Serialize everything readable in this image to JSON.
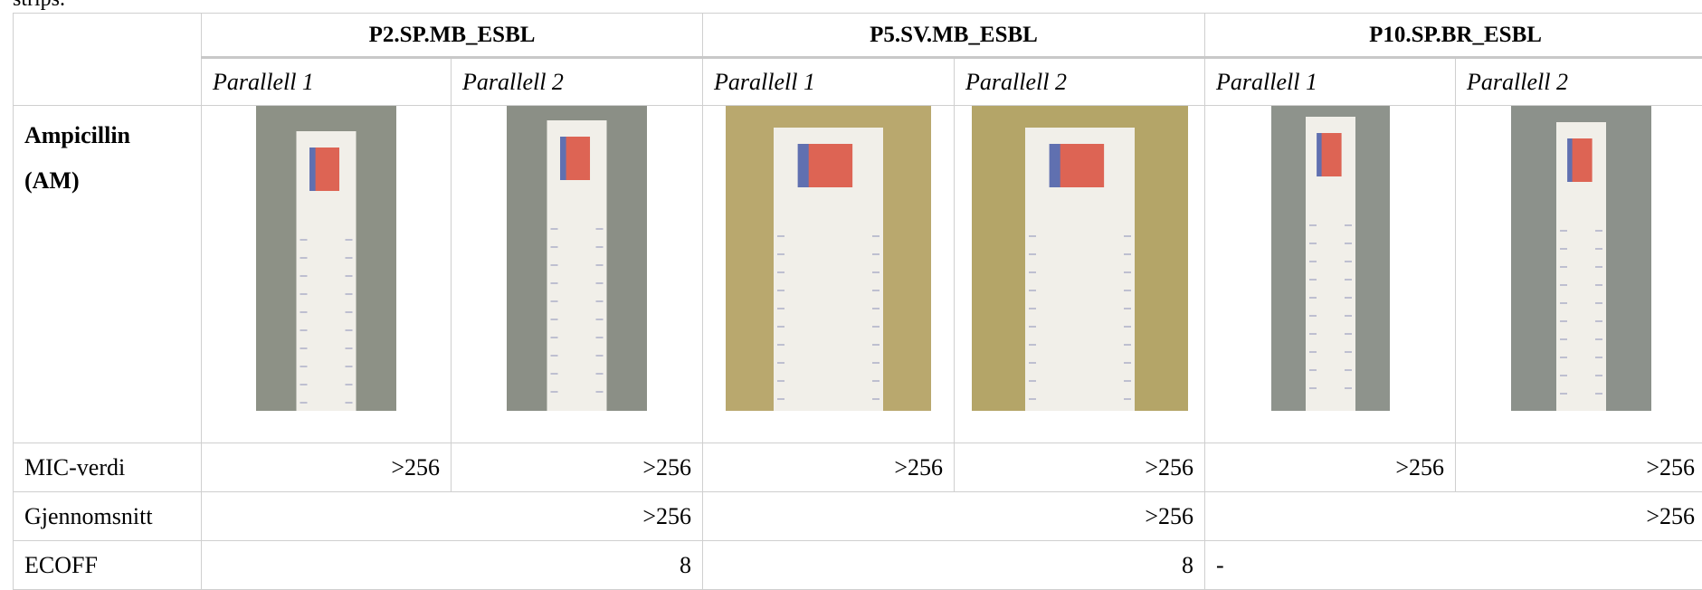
{
  "intro_text": "strips.",
  "table": {
    "groups": [
      "P2.SP.MB_ESBL",
      "P5.SV.MB_ESBL",
      "P10.SP.BR_ESBL"
    ],
    "subheaders": [
      "Parallell 1",
      "Parallell 2",
      "Parallell 1",
      "Parallell 2",
      "Parallell 1",
      "Parallell 2"
    ],
    "antibiotic": "Ampicillin (AM)",
    "rows": [
      {
        "label": "MIC-verdi",
        "cells": [
          ">256",
          ">256",
          ">256",
          ">256",
          ">256",
          ">256"
        ]
      },
      {
        "label": "Gjennomsnitt",
        "cells": [
          ">256",
          ">256",
          ">256"
        ]
      },
      {
        "label": "ECOFF",
        "cells": [
          "8",
          "8",
          "-"
        ]
      }
    ]
  }
}
